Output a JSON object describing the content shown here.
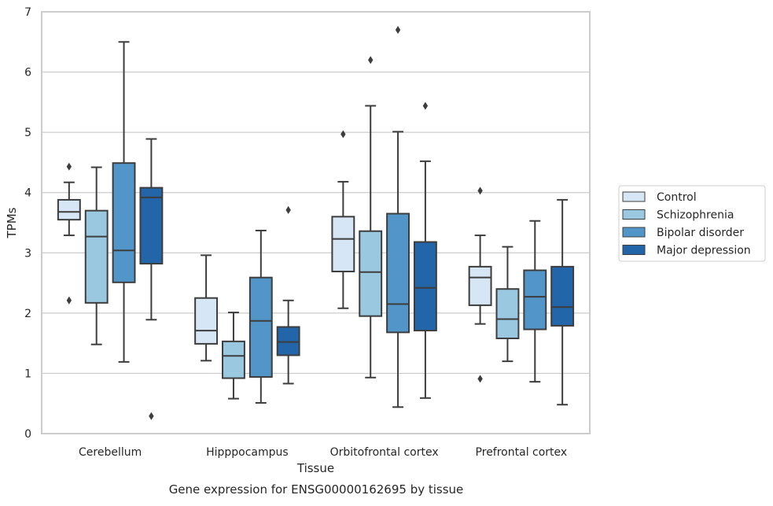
{
  "chart_data": {
    "type": "boxplot",
    "caption": "Gene expression for ENSG00000162695 by tissue",
    "xlabel": "Tissue",
    "ylabel": "TPMs",
    "ylim": [
      0,
      7
    ],
    "yticks": [
      "0",
      "1",
      "2",
      "3",
      "4",
      "5",
      "6",
      "7"
    ],
    "grid": "horizontal",
    "legend_position": "right",
    "categories": [
      "Cerebellum",
      "Hipppocampus",
      "Orbitofrontal cortex",
      "Prefrontal cortex"
    ],
    "series": [
      {
        "name": "Control",
        "color": "#d6e6f4",
        "boxes": [
          {
            "whislo": 3.29,
            "q1": 3.55,
            "med": 3.68,
            "q3": 3.88,
            "whishi": 4.17,
            "fliers": [
              4.43,
              2.21
            ]
          },
          {
            "whislo": 1.21,
            "q1": 1.49,
            "med": 1.71,
            "q3": 2.25,
            "whishi": 2.96,
            "fliers": []
          },
          {
            "whislo": 2.08,
            "q1": 2.69,
            "med": 3.23,
            "q3": 3.6,
            "whishi": 4.18,
            "fliers": [
              4.97
            ]
          },
          {
            "whislo": 1.82,
            "q1": 2.13,
            "med": 2.59,
            "q3": 2.77,
            "whishi": 3.29,
            "fliers": [
              4.03,
              0.91
            ]
          }
        ]
      },
      {
        "name": "Schizophrenia",
        "color": "#9ac8e0",
        "boxes": [
          {
            "whislo": 1.48,
            "q1": 2.17,
            "med": 3.27,
            "q3": 3.7,
            "whishi": 4.42,
            "fliers": []
          },
          {
            "whislo": 0.58,
            "q1": 0.92,
            "med": 1.29,
            "q3": 1.53,
            "whishi": 2.01,
            "fliers": []
          },
          {
            "whislo": 0.93,
            "q1": 1.95,
            "med": 2.68,
            "q3": 3.36,
            "whishi": 5.44,
            "fliers": [
              6.2
            ]
          },
          {
            "whislo": 1.2,
            "q1": 1.58,
            "med": 1.9,
            "q3": 2.4,
            "whishi": 3.1,
            "fliers": []
          }
        ]
      },
      {
        "name": "Bipolar disorder",
        "color": "#5296c9",
        "boxes": [
          {
            "whislo": 1.19,
            "q1": 2.51,
            "med": 3.04,
            "q3": 4.49,
            "whishi": 6.5,
            "fliers": []
          },
          {
            "whislo": 0.51,
            "q1": 0.94,
            "med": 1.87,
            "q3": 2.59,
            "whishi": 3.37,
            "fliers": []
          },
          {
            "whislo": 0.44,
            "q1": 1.68,
            "med": 2.15,
            "q3": 3.65,
            "whishi": 5.01,
            "fliers": [
              6.7
            ]
          },
          {
            "whislo": 0.86,
            "q1": 1.73,
            "med": 2.27,
            "q3": 2.71,
            "whishi": 3.53,
            "fliers": []
          }
        ]
      },
      {
        "name": "Major depression",
        "color": "#2365a9",
        "boxes": [
          {
            "whislo": 1.89,
            "q1": 2.82,
            "med": 3.92,
            "q3": 4.08,
            "whishi": 4.89,
            "fliers": [
              0.29
            ]
          },
          {
            "whislo": 0.83,
            "q1": 1.3,
            "med": 1.52,
            "q3": 1.77,
            "whishi": 2.21,
            "fliers": [
              3.71
            ]
          },
          {
            "whislo": 0.59,
            "q1": 1.71,
            "med": 2.42,
            "q3": 3.18,
            "whishi": 4.52,
            "fliers": [
              5.44
            ]
          },
          {
            "whislo": 0.48,
            "q1": 1.79,
            "med": 2.1,
            "q3": 2.77,
            "whishi": 3.88,
            "fliers": []
          }
        ]
      }
    ]
  }
}
